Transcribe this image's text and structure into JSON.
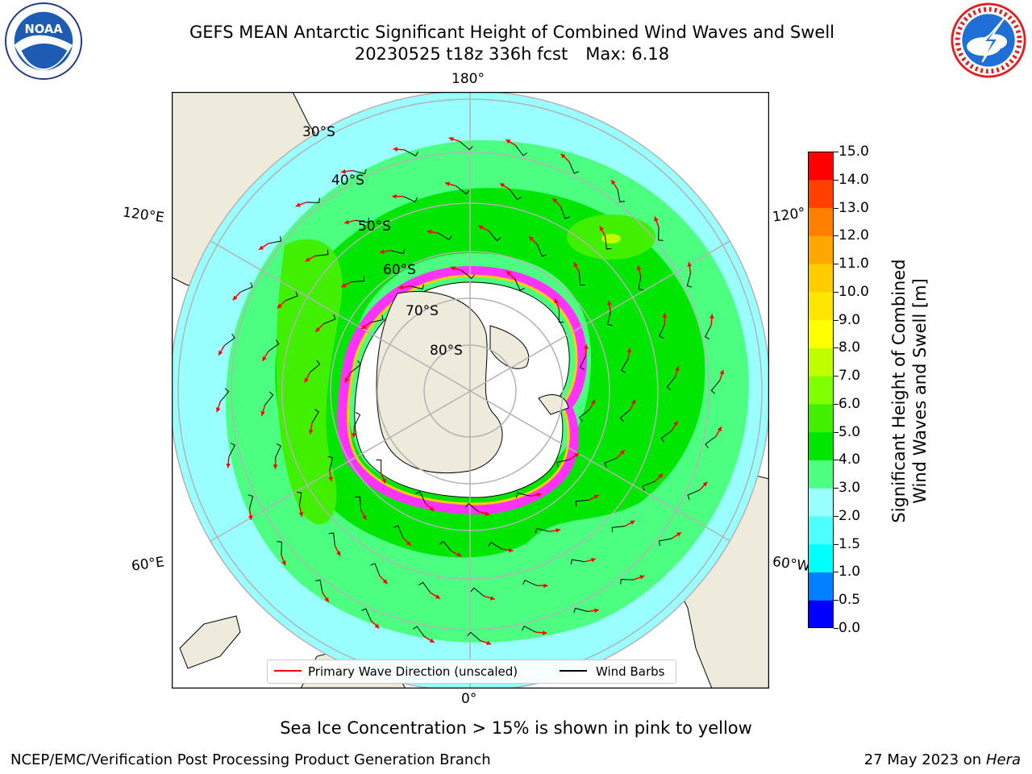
{
  "title": {
    "line1": "GEFS MEAN Antarctic Significant Height of Combined Wind Waves and Swell",
    "line2": "20230525 t18z 336h fcst",
    "max": "Max: 6.18"
  },
  "logos": {
    "noaa": {
      "text": "NOAA",
      "icon": "noaa-logo-icon"
    },
    "nws": {
      "icon": "nws-logo-icon"
    }
  },
  "map": {
    "projection": "south-polar-stereographic",
    "lon_labels": {
      "top": "180°",
      "bottom": "0°",
      "left_upper": "120°E",
      "left_lower": "60°E",
      "right_upper": "120°",
      "right_lower": "60°W"
    },
    "lat_labels": [
      "30°S",
      "40°S",
      "50°S",
      "60°S",
      "70°S",
      "80°S"
    ],
    "colors": {
      "land": "#efebdc",
      "ocean_low": "#99ffff",
      "ocean_mid": "#4dff80",
      "ocean_high": "#00e600",
      "sea_ice": "#ff33ff",
      "grid": "#b3b3b3",
      "arrow": "#ff0000",
      "barb": "#000000"
    }
  },
  "colorbar": {
    "label": "Significant Height of Combined Wind Waves and Swell [m]",
    "label_line1": "Significant Height of Combined",
    "label_line2": "Wind Waves and Swell [m]",
    "ticks": [
      "15.0",
      "14.0",
      "13.0",
      "12.0",
      "11.0",
      "10.0",
      "9.0",
      "8.0",
      "7.0",
      "6.0",
      "5.0",
      "4.0",
      "3.0",
      "2.0",
      "1.5",
      "1.0",
      "0.5",
      "0.0"
    ],
    "colors": [
      "#0000ff",
      "#0080ff",
      "#00ffff",
      "#4dffff",
      "#99ffff",
      "#4dff80",
      "#00e600",
      "#40f000",
      "#80ff00",
      "#c0ff00",
      "#ffff00",
      "#ffe600",
      "#ffcc00",
      "#ffa600",
      "#ff8000",
      "#ff4000",
      "#ff0000"
    ]
  },
  "legend": {
    "primary_wave": "Primary Wave Direction (unscaled)",
    "wind_barbs": "Wind Barbs"
  },
  "subtitle": "Sea Ice Concentration > 15% is shown in pink to yellow",
  "footer": {
    "left": "NCEP/EMC/Verification Post Processing Product Generation Branch",
    "right_prefix": "27 May 2023 on",
    "right_machine": "Hera"
  }
}
